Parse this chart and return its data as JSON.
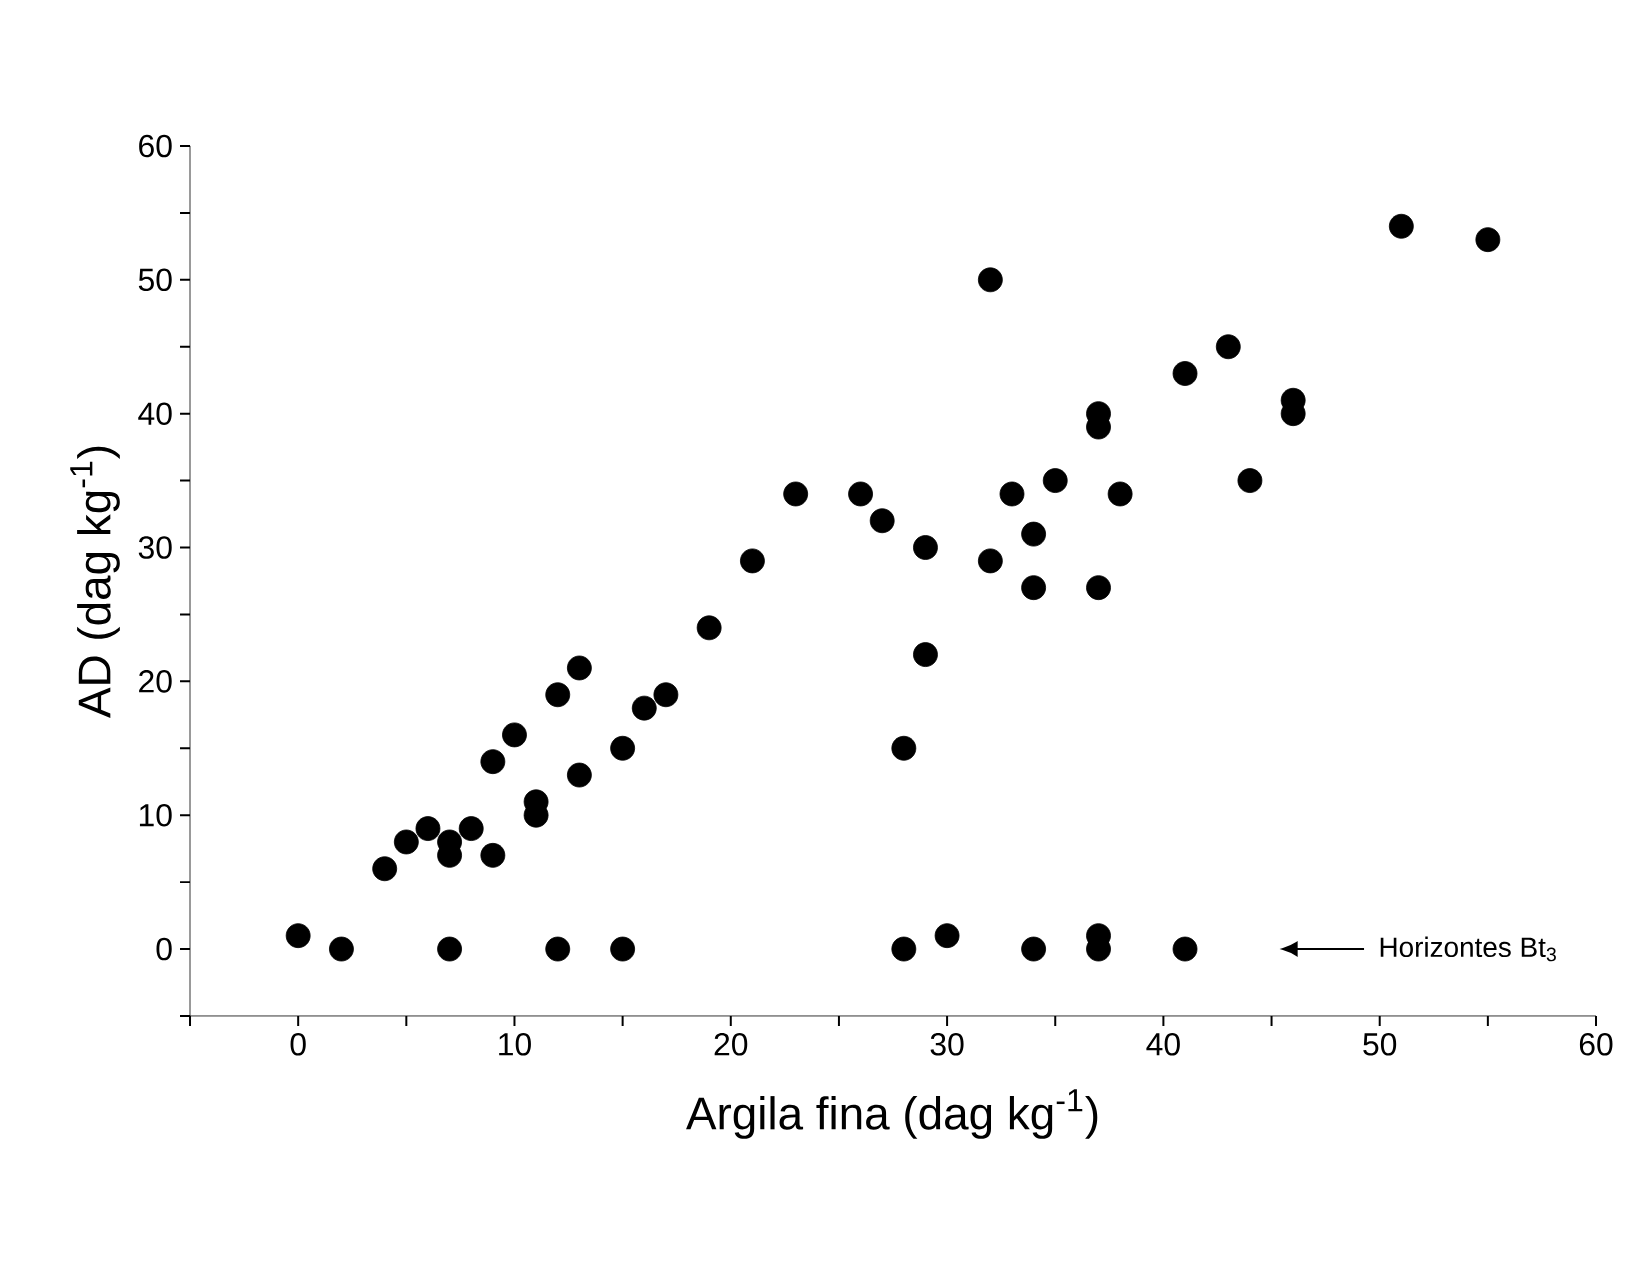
{
  "chart_data": {
    "type": "scatter",
    "xlabel": "Argila fina (dag kg$^{-1}$)",
    "ylabel": "AD (dag kg$^{-1}$)",
    "x": [
      0,
      2,
      4,
      5,
      6,
      7,
      7,
      7,
      8,
      9,
      9,
      10,
      11,
      11,
      12,
      12,
      13,
      13,
      15,
      15,
      16,
      17,
      19,
      21,
      23,
      26,
      27,
      28,
      28,
      29,
      29,
      30,
      32,
      32,
      33,
      34,
      34,
      34,
      35,
      37,
      37,
      37,
      37,
      37,
      38,
      41,
      41,
      43,
      44,
      46,
      46,
      51,
      55
    ],
    "series": [
      {
        "color": "#000000",
        "values": [
          1,
          0,
          6,
          8,
          9,
          8,
          7,
          0,
          9,
          14,
          7,
          16,
          11,
          10,
          19,
          0,
          21,
          13,
          15,
          0,
          18,
          19,
          24,
          29,
          34,
          34,
          32,
          15,
          0,
          30,
          22,
          1,
          50,
          29,
          34,
          31,
          27,
          0,
          35,
          40,
          39,
          27,
          1,
          0,
          34,
          43,
          0,
          45,
          35,
          41,
          40,
          54,
          53
        ]
      }
    ],
    "marker": "circle",
    "xlim": [
      -5,
      60
    ],
    "ylim": [
      -5,
      60
    ],
    "xticks": [
      {
        "value": -5,
        "label": null
      },
      0,
      {
        "value": 5,
        "label": null
      },
      10,
      {
        "value": 15,
        "label": null
      },
      20,
      {
        "value": 25,
        "label": null
      },
      30,
      {
        "value": 35,
        "label": null
      },
      40,
      {
        "value": 45,
        "label": null
      },
      50,
      {
        "value": 55,
        "label": null
      },
      60
    ],
    "yticks": [
      {
        "value": -5,
        "label": null
      },
      0,
      {
        "value": 5,
        "label": null
      },
      10,
      {
        "value": 15,
        "label": null
      },
      20,
      {
        "value": 25,
        "label": null
      },
      30,
      {
        "value": 35,
        "label": null
      },
      40,
      {
        "value": 45,
        "label": null
      },
      50,
      {
        "value": 55,
        "label": null
      },
      60
    ],
    "annotations": [
      "Horizontes Bt$_{3}$"
    ],
    "grid": false
  }
}
